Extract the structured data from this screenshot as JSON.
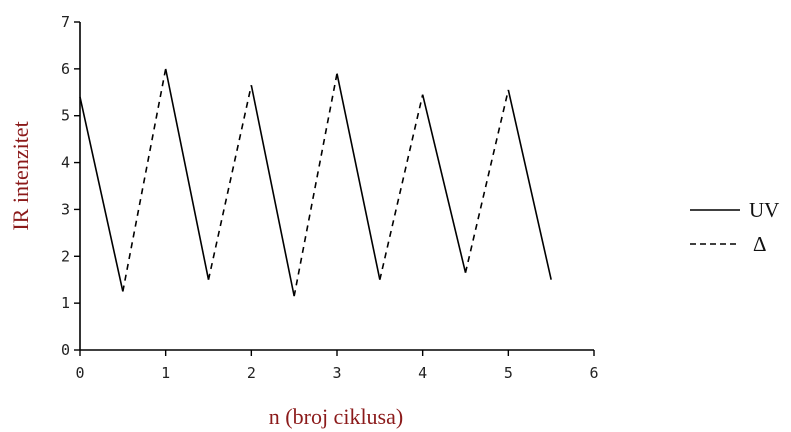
{
  "chart_data": {
    "type": "line",
    "title": "",
    "xlabel": "n (broj ciklusa)",
    "ylabel": "IR intenzitet",
    "xlim": [
      0,
      6
    ],
    "ylim": [
      0,
      7
    ],
    "xticks": [
      "0",
      "1",
      "2",
      "3",
      "4",
      "5",
      "6"
    ],
    "yticks": [
      "0",
      "1",
      "2",
      "3",
      "4",
      "5",
      "6",
      "7"
    ],
    "grid": false,
    "legend_position": "right",
    "series": [
      {
        "name": "UV",
        "style": "solid",
        "color": "#000000",
        "segments": [
          [
            [
              0,
              5.4
            ],
            [
              0.5,
              1.25
            ]
          ],
          [
            [
              1,
              6.0
            ],
            [
              1.5,
              1.5
            ]
          ],
          [
            [
              2,
              5.65
            ],
            [
              2.5,
              1.15
            ]
          ],
          [
            [
              3,
              5.9
            ],
            [
              3.5,
              1.5
            ]
          ],
          [
            [
              4,
              5.45
            ],
            [
              4.5,
              1.65
            ]
          ],
          [
            [
              5,
              5.55
            ],
            [
              5.5,
              1.5
            ]
          ]
        ]
      },
      {
        "name": "Δ",
        "style": "dashed",
        "color": "#000000",
        "segments": [
          [
            [
              0.5,
              1.25
            ],
            [
              1,
              6.0
            ]
          ],
          [
            [
              1.5,
              1.5
            ],
            [
              2,
              5.65
            ]
          ],
          [
            [
              2.5,
              1.15
            ],
            [
              3,
              5.9
            ]
          ],
          [
            [
              3.5,
              1.5
            ],
            [
              4,
              5.45
            ]
          ],
          [
            [
              4.5,
              1.65
            ],
            [
              5,
              5.55
            ]
          ]
        ]
      }
    ]
  }
}
